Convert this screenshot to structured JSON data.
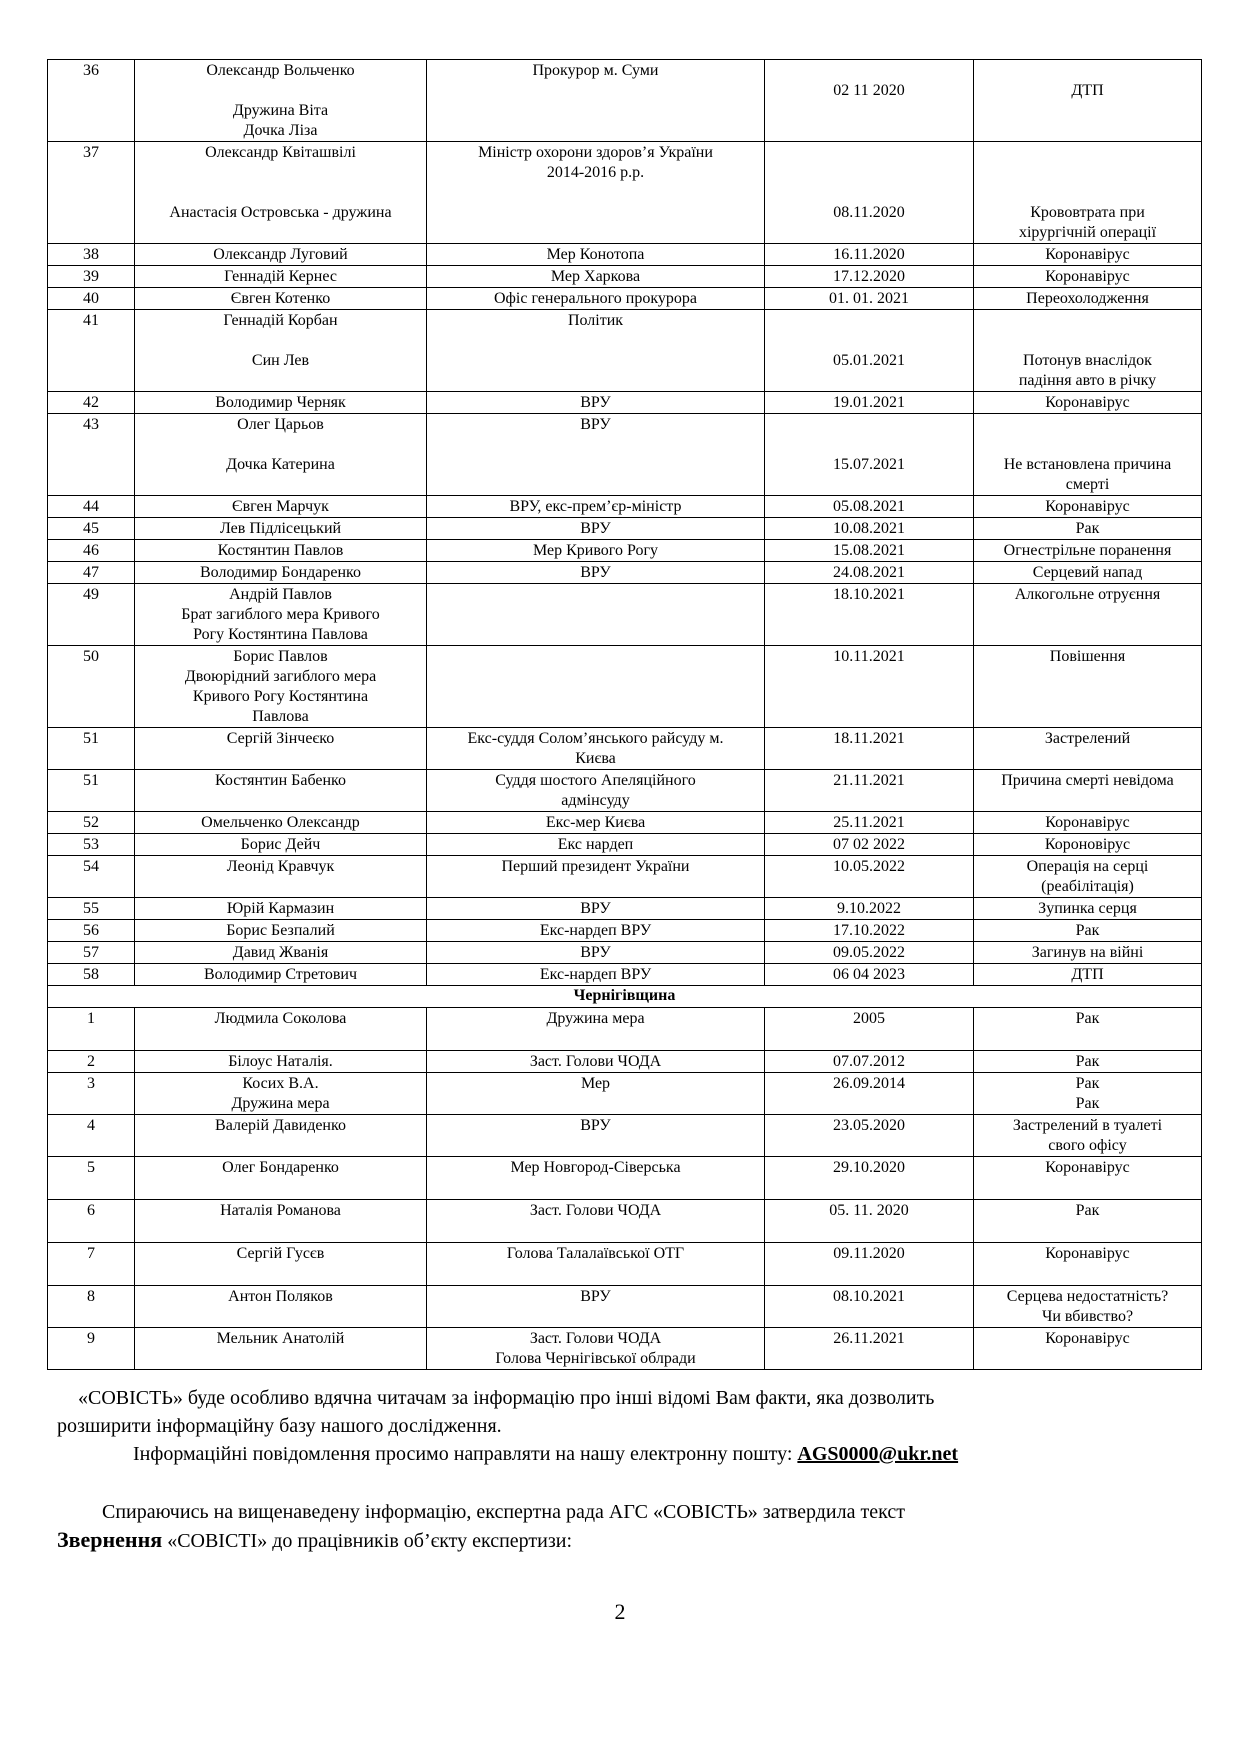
{
  "table": {
    "rows": [
      {
        "num": [
          "36"
        ],
        "name": [
          "Олександр Вольченко",
          "",
          "Дружина Віта",
          "Дочка Ліза"
        ],
        "position": [
          "Прокурор м. Суми"
        ],
        "date": [
          "",
          "02 11 2020"
        ],
        "cause": [
          "",
          "ДТП"
        ]
      },
      {
        "num": [
          "37"
        ],
        "name": [
          "Олександр Квіташвілі",
          "",
          "",
          "Анастасія Островська - дружина"
        ],
        "position": [
          "Міністр охорони здоров’я України",
          "2014-2016 р.р."
        ],
        "date": [
          "",
          "",
          "",
          "08.11.2020"
        ],
        "cause": [
          "",
          "",
          "",
          "Крововтрата при",
          "хірургічній операції"
        ]
      },
      {
        "num": [
          "38"
        ],
        "name": [
          "Олександр Луговий"
        ],
        "position": [
          "Мер Конотопа"
        ],
        "date": [
          "16.11.2020"
        ],
        "cause": [
          "Коронавірус"
        ]
      },
      {
        "num": [
          "39"
        ],
        "name": [
          "Геннадій Кернес"
        ],
        "position": [
          "Мер Харкова"
        ],
        "date": [
          "17.12.2020"
        ],
        "cause": [
          "Коронавірус"
        ]
      },
      {
        "num": [
          "40"
        ],
        "name": [
          "Євген Котенко"
        ],
        "position": [
          "Офіс генерального прокурора"
        ],
        "date": [
          "01. 01. 2021"
        ],
        "cause": [
          "Переохолодження"
        ]
      },
      {
        "num": [
          "41"
        ],
        "name": [
          "Геннадій Корбан",
          "",
          "Син Лев"
        ],
        "position": [
          "Політик"
        ],
        "date": [
          "",
          "",
          "05.01.2021"
        ],
        "cause": [
          "",
          "",
          "Потонув внаслідок",
          "падіння авто в річку"
        ]
      },
      {
        "num": [
          "42"
        ],
        "name": [
          "Володимир Черняк"
        ],
        "position": [
          "ВРУ"
        ],
        "date": [
          "19.01.2021"
        ],
        "cause": [
          "Коронавірус"
        ]
      },
      {
        "num": [
          "43"
        ],
        "name": [
          "Олег Царьов",
          "",
          "Дочка Катерина"
        ],
        "position": [
          "ВРУ"
        ],
        "date": [
          "",
          "",
          "15.07.2021"
        ],
        "cause": [
          "",
          "",
          "Не встановлена причина",
          "смерті"
        ]
      },
      {
        "num": [
          "44"
        ],
        "name": [
          "Євген Марчук"
        ],
        "position": [
          "ВРУ,  екс-прем’єр-міністр"
        ],
        "date": [
          "05.08.2021"
        ],
        "cause": [
          "Коронавірус"
        ]
      },
      {
        "num": [
          "45"
        ],
        "name": [
          "Лев Підлісецький"
        ],
        "position": [
          "ВРУ"
        ],
        "date": [
          "10.08.2021"
        ],
        "cause": [
          "Рак"
        ]
      },
      {
        "num": [
          "46"
        ],
        "name": [
          "Костянтин Павлов"
        ],
        "position": [
          "Мер Кривого Рогу"
        ],
        "date": [
          "15.08.2021"
        ],
        "cause": [
          "Огнестрільне поранення"
        ]
      },
      {
        "num": [
          "47"
        ],
        "name": [
          "Володимир Бондаренко"
        ],
        "position": [
          "ВРУ"
        ],
        "date": [
          "24.08.2021"
        ],
        "cause": [
          "Серцевий напад"
        ]
      },
      {
        "num": [
          "49"
        ],
        "name": [
          "Андрій Павлов",
          "Брат загиблого мера Кривого",
          "Рогу Костянтина Павлова"
        ],
        "position": [],
        "date": [
          "18.10.2021"
        ],
        "cause": [
          "Алкогольне отруєння"
        ]
      },
      {
        "num": [
          "50"
        ],
        "name": [
          "Борис Павлов",
          "Двоюрідний загиблого мера",
          "Кривого Рогу Костянтина",
          "Павлова"
        ],
        "position": [],
        "date": [
          "10.11.2021"
        ],
        "cause": [
          "Повішення"
        ]
      },
      {
        "num": [
          "51"
        ],
        "name": [
          "Сергій Зінчеєко"
        ],
        "position": [
          "Екс-суддя Солом’янського райсуду м.",
          "Києва"
        ],
        "date": [
          "18.11.2021"
        ],
        "cause": [
          "Застрелений"
        ]
      },
      {
        "num": [
          "51"
        ],
        "name": [
          "Костянтин Бабенко"
        ],
        "position": [
          "Суддя шостого Апеляційного",
          "адмінсуду"
        ],
        "date": [
          "21.11.2021"
        ],
        "cause": [
          "Причина смерті невідома"
        ]
      },
      {
        "num": [
          "52"
        ],
        "name": [
          "Омельченко Олександр"
        ],
        "position": [
          "Екс-мер Києва"
        ],
        "date": [
          "25.11.2021"
        ],
        "cause": [
          "Коронавірус"
        ]
      },
      {
        "num": [
          "53"
        ],
        "name": [
          "Борис Дейч"
        ],
        "position": [
          "Екс нардеп"
        ],
        "date": [
          "07 02 2022"
        ],
        "cause": [
          "Короновірус"
        ]
      },
      {
        "num": [
          "54"
        ],
        "name": [
          "Леонід Кравчук"
        ],
        "position": [
          "Перший президент України"
        ],
        "date": [
          "10.05.2022"
        ],
        "cause": [
          "Операція на серці",
          "(реабілітація)"
        ]
      },
      {
        "num": [
          "55"
        ],
        "name": [
          "Юрій Кармазин"
        ],
        "position": [
          "ВРУ"
        ],
        "date": [
          "9.10.2022"
        ],
        "cause": [
          "Зупинка серця"
        ]
      },
      {
        "num": [
          "56"
        ],
        "name": [
          "Борис Безпалий"
        ],
        "position": [
          "Екс-нардеп ВРУ"
        ],
        "date": [
          "17.10.2022"
        ],
        "cause": [
          "Рак"
        ]
      },
      {
        "num": [
          "57"
        ],
        "name": [
          "Давид  Жванія"
        ],
        "position": [
          "ВРУ"
        ],
        "date": [
          "09.05.2022"
        ],
        "cause": [
          "Загинув на війні"
        ]
      },
      {
        "num": [
          "58"
        ],
        "name": [
          "Володимир Стретович"
        ],
        "position": [
          "Екс-нардеп ВРУ"
        ],
        "date": [
          "06 04 2023"
        ],
        "cause": [
          "ДТП"
        ]
      },
      {
        "section": "Чернігівщина"
      },
      {
        "num": [
          "1"
        ],
        "name": [
          "Людмила Соколова"
        ],
        "position": [
          "Дружина мера"
        ],
        "date": [
          "2005"
        ],
        "cause": [
          "Рак"
        ]
      },
      {
        "num": [
          "2"
        ],
        "name": [
          "Білоус Наталія."
        ],
        "position": [
          "Заст. Голови ЧОДА"
        ],
        "date": [
          "07.07.2012"
        ],
        "cause": [
          "Рак"
        ]
      },
      {
        "num": [
          "3"
        ],
        "name": [
          "Косих В.А.",
          "Дружина мера"
        ],
        "position": [
          "Мер"
        ],
        "date": [
          "26.09.2014"
        ],
        "cause": [
          "Рак",
          "Рак"
        ]
      },
      {
        "num": [
          "4"
        ],
        "name": [
          "Валерій Давиденко"
        ],
        "position": [
          "ВРУ"
        ],
        "date": [
          "23.05.2020"
        ],
        "cause": [
          "Застрелений в туалеті",
          "свого офісу"
        ]
      },
      {
        "num": [
          "5"
        ],
        "name": [
          "Олег Бондаренко"
        ],
        "position": [
          "Мер Новгород-Сіверська"
        ],
        "date": [
          "29.10.2020"
        ],
        "cause": [
          "Коронавірус"
        ]
      },
      {
        "num": [
          "6"
        ],
        "name": [
          "Наталія Романова"
        ],
        "position": [
          "Заст. Голови ЧОДА"
        ],
        "date": [
          "05. 11. 2020"
        ],
        "cause": [
          "Рак"
        ]
      },
      {
        "num": [
          "7"
        ],
        "name": [
          "Сергій Гусєв"
        ],
        "position": [
          "Голова Талалаївської  ОТГ"
        ],
        "date": [
          "09.11.2020"
        ],
        "cause": [
          "Коронавірус"
        ]
      },
      {
        "num": [
          "8"
        ],
        "name": [
          "Антон Поляков"
        ],
        "position": [
          "ВРУ"
        ],
        "date": [
          "08.10.2021"
        ],
        "cause": [
          "Серцева недостатність?",
          "Чи вбивство?"
        ]
      },
      {
        "num": [
          "9"
        ],
        "name": [
          "Мельник Анатолій"
        ],
        "position": [
          "Заст. Голови ЧОДА",
          "Голова Чернігівської облради"
        ],
        "date": [
          "26.11.2021"
        ],
        "cause": [
          "Коронавірус"
        ]
      }
    ]
  },
  "text": {
    "para1_line1": "«СОВІСТЬ» буде особливо вдячна читачам за інформацію про інші відомі Вам факти, яка дозволить",
    "para1_line2": "розширити інформаційну базу нашого дослідження.",
    "para2_text": "Інформаційні повідомлення просимо направляти на нашу електронну пошту: ",
    "email": "AGS0000@ukr.net",
    "para3_line1": "Спираючись на вищенаведену інформацію, експертна рада АГС «СОВІСТЬ» затвердила текст",
    "para3_bold": "Звернення",
    "para3_rest": "  «СОВІСТІ» до працівників об’єкту експертизи:",
    "page_number": "2"
  }
}
